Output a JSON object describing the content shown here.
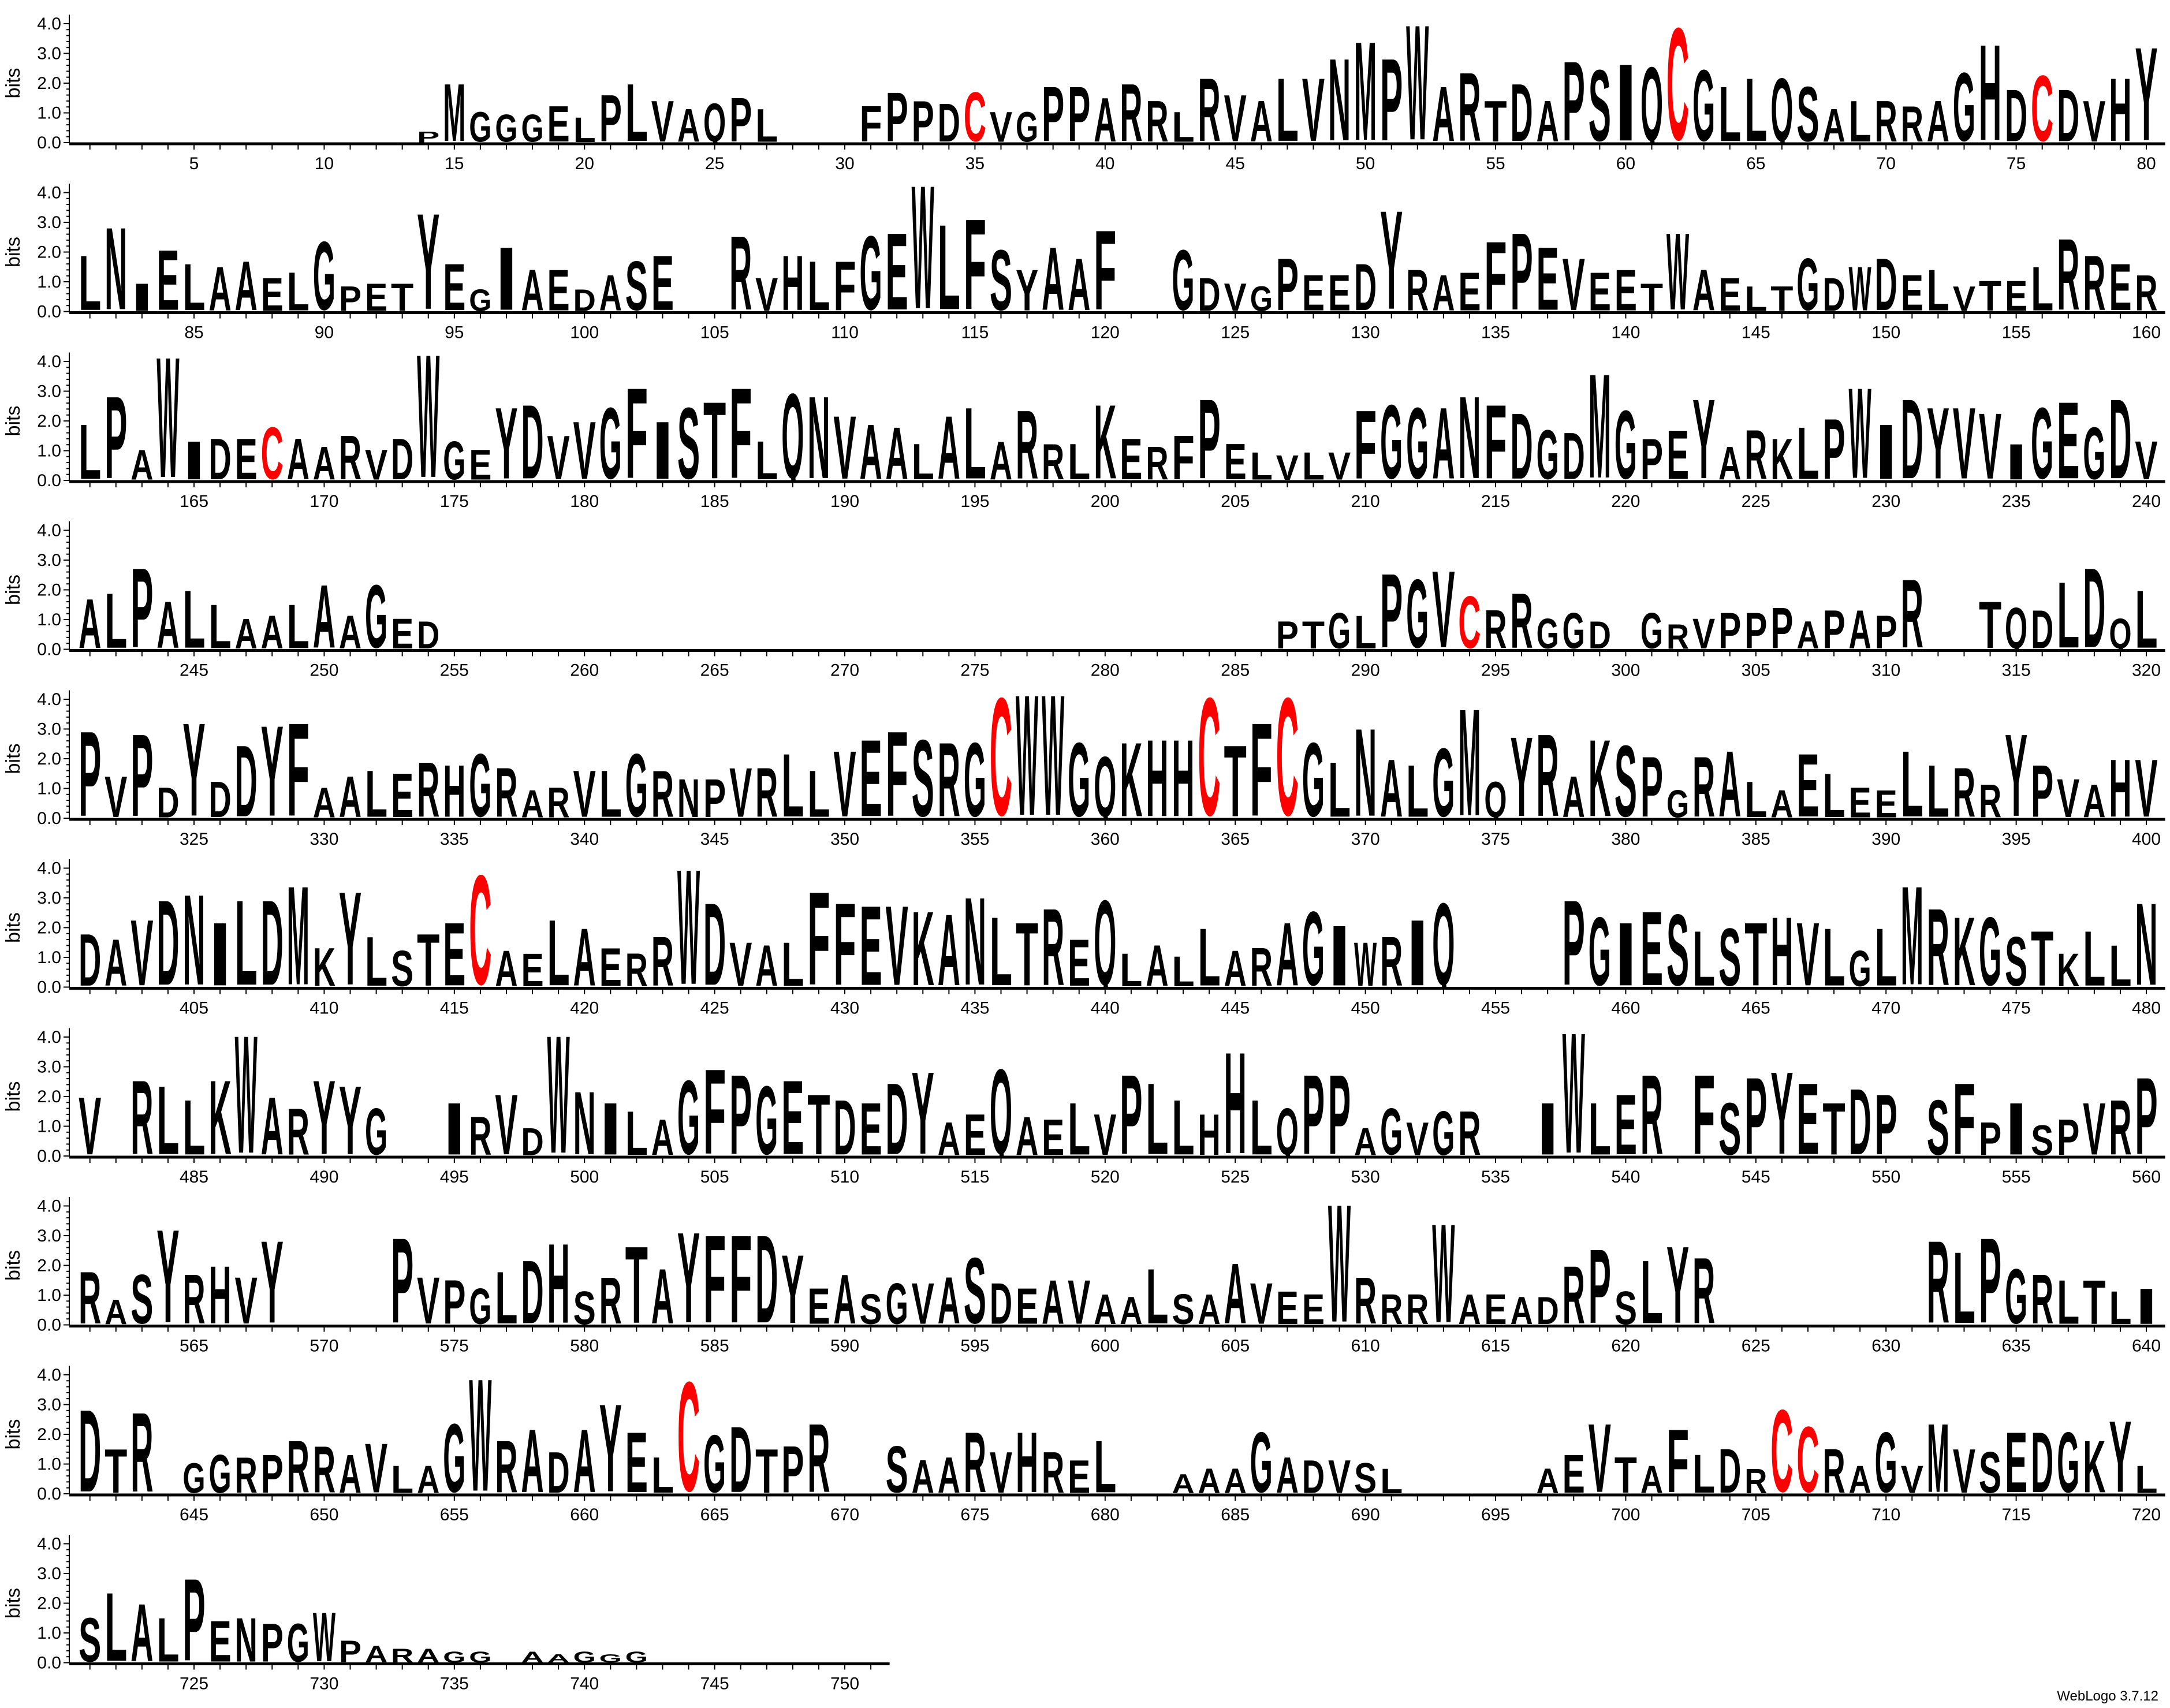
{
  "chart_data": {
    "type": "sequence-logo",
    "ylabel": "bits",
    "ylim": [
      0,
      4.3
    ],
    "ytick_labels": [
      "0.0",
      "1.0",
      "2.0",
      "3.0",
      "4.0"
    ],
    "xtick_every": 5,
    "colors": {
      "default": "#000000",
      "C": "#ff0000"
    },
    "credit": "WebLogo 3.7.12",
    "rows": [
      {
        "start": 1,
        "consensus": ".............PMGGGELPLVAQPL...FPPDCVGPPARRLRVALVNMPWARTDAPSIQCGLLQSALRRAGHDCDVHY",
        "bits": [
          0.15,
          0.15,
          0.15,
          0.15,
          0.15,
          0.15,
          0.15,
          0.15,
          0.15,
          0.15,
          0.15,
          0.15,
          0.15,
          0.4,
          2.1,
          1.1,
          1.0,
          1.0,
          1.3,
          0.9,
          1.7,
          2.1,
          1.5,
          1.2,
          1.4,
          1.6,
          1.2,
          0.3,
          0.3,
          0.4,
          1.3,
          1.8,
          1.5,
          1.4,
          1.8,
          1.1,
          1.1,
          2.0,
          2.0,
          1.6,
          2.1,
          1.5,
          1.1,
          2.3,
          1.7,
          1.5,
          2.3,
          2.3,
          3.0,
          3.6,
          3.0,
          4.2,
          2.0,
          2.5,
          1.5,
          2.1,
          1.5,
          2.9,
          2.6,
          2.8,
          2.7,
          4.1,
          2.6,
          2.0,
          2.3,
          2.3,
          2.0,
          1.2,
          1.5,
          1.5,
          1.3,
          1.5,
          2.5,
          3.5,
          1.9,
          2.4,
          1.9,
          1.5,
          2.3,
          3.4
        ]
      },
      {
        "start": 81,
        "consensus": "LNIELAAELGPETYEGIAEDASE..RVHLFGEWLFSYAAF..GDVGPEEDYRAEFPEVEETWAELTGDWDELVTELRRER",
        "bits": [
          2.0,
          3.0,
          1.0,
          2.2,
          1.7,
          1.6,
          1.8,
          1.2,
          1.4,
          2.5,
          0.9,
          1.0,
          1.0,
          3.5,
          1.7,
          0.8,
          2.3,
          1.5,
          1.5,
          0.8,
          1.3,
          1.8,
          2.0,
          0.2,
          0.3,
          2.7,
          1.2,
          2.0,
          1.8,
          1.8,
          2.7,
          2.8,
          4.5,
          3.1,
          3.3,
          2.2,
          1.5,
          2.3,
          1.9,
          2.9,
          0.2,
          0.3,
          2.2,
          1.2,
          1.0,
          0.9,
          1.9,
          1.3,
          1.3,
          1.7,
          3.6,
          1.5,
          1.3,
          1.4,
          2.5,
          2.8,
          2.3,
          1.9,
          1.4,
          1.5,
          1.0,
          2.8,
          1.5,
          1.2,
          0.9,
          0.9,
          1.9,
          1.2,
          1.6,
          1.9,
          1.3,
          1.5,
          0.9,
          1.1,
          1.1,
          1.6,
          2.6,
          2.0,
          1.7,
          1.3
        ]
      },
      {
        "start": 161,
        "consensus": "LPAWIDECAARVDWGEYDVVGFISTFLQNVAALALARRLKERFPELVLVFGGANFDGDMGPEYARKLPWIDYVVIGEGDV",
        "bits": [
          2.0,
          3.0,
          1.1,
          4.4,
          1.4,
          1.5,
          1.5,
          1.9,
          1.5,
          1.2,
          1.6,
          1.1,
          1.5,
          4.5,
          1.4,
          1.1,
          2.6,
          2.7,
          1.6,
          2.1,
          2.6,
          3.3,
          2.1,
          2.6,
          2.8,
          3.3,
          1.4,
          3.1,
          3.0,
          2.3,
          2.0,
          1.9,
          1.3,
          2.3,
          2.6,
          1.4,
          2.5,
          1.3,
          1.3,
          2.7,
          1.5,
          1.2,
          1.6,
          2.9,
          1.3,
          1.0,
          0.9,
          1.0,
          1.0,
          2.5,
          2.7,
          2.6,
          2.6,
          3.0,
          2.7,
          2.4,
          1.8,
          1.7,
          3.8,
          2.5,
          1.5,
          1.8,
          2.9,
          1.2,
          1.8,
          1.5,
          1.9,
          2.2,
          3.3,
          2.0,
          2.9,
          2.6,
          2.6,
          2.4,
          1.3,
          2.6,
          2.8,
          1.9,
          2.9,
          1.4
        ]
      },
      {
        "start": 241,
        "consensus": "ALPALLAALAAGED................................PTGLPGVCRRGGD.GRVPPPAPAPR..TQDLDQL",
        "bits": [
          1.8,
          2.0,
          2.9,
          1.7,
          2.1,
          1.6,
          1.1,
          1.2,
          1.6,
          2.3,
          1.2,
          2.3,
          1.1,
          1.0,
          0.05,
          0.05,
          0.05,
          0.05,
          0.05,
          0.05,
          0.05,
          0.05,
          0.05,
          0.05,
          0.05,
          0.05,
          0.05,
          0.05,
          0.05,
          0.05,
          0.05,
          0.05,
          0.05,
          0.05,
          0.05,
          0.05,
          0.05,
          0.05,
          0.05,
          0.05,
          0.05,
          0.05,
          0.05,
          0.05,
          0.05,
          0.05,
          1.0,
          1.0,
          1.3,
          1.2,
          2.7,
          2.5,
          2.8,
          1.9,
          1.4,
          2.0,
          1.1,
          1.3,
          1.0,
          0.3,
          1.3,
          0.9,
          1.1,
          1.3,
          1.3,
          1.5,
          1.0,
          1.4,
          1.4,
          1.2,
          2.5,
          0.1,
          0.1,
          1.7,
          1.5,
          1.4,
          2.4,
          2.9,
          1.1,
          2.1
        ]
      },
      {
        "start": 321,
        "consensus": "PVPDYDDYFAALERHGRARVLGRNPVRLLVEFSRGCWWGQKHHCTFCGLNALGMQYRAKSPGRALAELEELLRRYPVAHV",
        "bits": [
          3.1,
          1.5,
          3.0,
          1.1,
          3.4,
          1.3,
          2.6,
          3.3,
          3.4,
          1.1,
          1.5,
          1.7,
          1.6,
          2.0,
          1.9,
          2.3,
          1.8,
          1.0,
          1.1,
          1.7,
          1.7,
          2.3,
          1.7,
          1.4,
          1.4,
          1.8,
          1.8,
          2.3,
          1.7,
          2.4,
          2.8,
          3.1,
          2.8,
          2.7,
          2.7,
          4.3,
          4.4,
          4.4,
          2.7,
          2.2,
          2.7,
          2.8,
          2.8,
          4.3,
          2.6,
          3.4,
          4.3,
          2.7,
          2.0,
          3.2,
          2.1,
          1.9,
          2.5,
          3.9,
          1.3,
          2.9,
          3.0,
          1.5,
          2.8,
          2.6,
          2.2,
          1.0,
          2.2,
          2.4,
          1.3,
          1.0,
          2.3,
          1.6,
          1.1,
          1.0,
          2.4,
          1.9,
          1.8,
          1.2,
          3.0,
          1.9,
          1.4,
          1.2,
          2.1,
          2.1
        ]
      },
      {
        "start": 401,
        "consensus": "DAVDNILDMKYLSTECAELAERRWDVALFFEVKANLTREQLALLARAGIWRIQ....PGIESLSTHVLGLMRKGSTKLLN",
        "bits": [
          1.9,
          1.7,
          2.4,
          3.1,
          3.3,
          2.3,
          3.1,
          3.1,
          3.6,
          1.4,
          3.4,
          1.8,
          1.3,
          1.9,
          2.3,
          4.0,
          1.3,
          1.2,
          2.4,
          2.1,
          1.4,
          1.2,
          1.8,
          4.2,
          3.0,
          1.6,
          1.5,
          1.6,
          3.4,
          3.0,
          2.9,
          2.9,
          2.7,
          2.6,
          3.2,
          2.5,
          2.3,
          2.8,
          1.7,
          3.1,
          1.2,
          1.5,
          1.1,
          2.1,
          1.3,
          1.4,
          2.3,
          2.7,
          2.2,
          1.6,
          1.8,
          2.4,
          3.0,
          0.05,
          0.05,
          0.05,
          0.05,
          3.1,
          2.5,
          2.3,
          2.7,
          2.6,
          2.0,
          2.1,
          2.3,
          2.5,
          2.3,
          2.1,
          1.3,
          2.1,
          3.6,
          2.8,
          2.5,
          2.5,
          1.8,
          2.0,
          1.2,
          2.0,
          1.5,
          3.0
        ]
      },
      {
        "start": 481,
        "consensus": "V.RLLKWARYYG..IRVDWNILAGFPGETDEDYAEQAELVPLLHHLQPPAGVGR..IWLER.FSPYETDP.SFPISPVRP",
        "bits": [
          2.1,
          0.3,
          2.7,
          2.5,
          2.0,
          2.7,
          4.3,
          2.1,
          1.7,
          2.7,
          2.5,
          1.7,
          0.2,
          0.2,
          1.9,
          1.4,
          2.2,
          1.0,
          4.3,
          2.3,
          1.9,
          1.6,
          1.3,
          2.7,
          3.1,
          2.9,
          2.5,
          2.7,
          2.2,
          2.0,
          1.9,
          2.6,
          3.0,
          1.2,
          1.5,
          3.1,
          1.4,
          1.3,
          1.9,
          1.5,
          2.9,
          2.6,
          2.0,
          1.5,
          3.7,
          2.0,
          1.7,
          2.9,
          2.9,
          1.0,
          1.7,
          1.2,
          1.6,
          1.6,
          0.1,
          0.1,
          1.9,
          4.4,
          1.9,
          2.2,
          2.9,
          0.1,
          2.9,
          1.9,
          2.8,
          3.0,
          2.6,
          1.9,
          2.4,
          2.2,
          0.1,
          2.0,
          2.6,
          1.2,
          1.9,
          1.1,
          1.3,
          1.9,
          2.0,
          2.8
        ]
      },
      {
        "start": 561,
        "consensus": "RASYRHVY....PVPGLDHSRTAYFFDYEASGVASDEAVAALSAAVEEWRRRWAEADRPSLYR........RLPGRLTLI",
        "bits": [
          1.9,
          0.9,
          1.8,
          3.4,
          1.8,
          2.1,
          1.7,
          3.0,
          0.1,
          0.1,
          0.1,
          0.1,
          3.1,
          1.7,
          1.6,
          1.3,
          1.9,
          2.3,
          2.9,
          1.2,
          1.7,
          2.8,
          2.0,
          3.3,
          3.2,
          3.2,
          3.2,
          2.5,
          1.3,
          1.8,
          1.1,
          1.5,
          1.5,
          1.7,
          2.4,
          1.5,
          1.3,
          1.6,
          1.6,
          1.1,
          1.0,
          2.0,
          1.1,
          1.1,
          2.2,
          1.5,
          1.2,
          1.1,
          4.3,
          1.7,
          1.1,
          1.1,
          3.6,
          1.1,
          1.1,
          1.0,
          1.0,
          2.1,
          2.7,
          1.2,
          2.3,
          2.8,
          2.4,
          0.1,
          0.1,
          0.1,
          0.1,
          0.1,
          0.1,
          0.1,
          0.1,
          3.0,
          2.6,
          3.1,
          2.0,
          1.8,
          1.6,
          1.6,
          1.2,
          1.3
        ]
      },
      {
        "start": 641,
        "consensus": "DTR.GGRPRRAVLAGWRADAYELCGDTPR..SAARVHREL..AAAGADVSL.....AEVTAFLDRCCRAGVMVSEDGKYL",
        "bits": [
          3.0,
          1.6,
          2.9,
          0.8,
          1.1,
          1.4,
          1.3,
          1.4,
          1.9,
          1.7,
          1.4,
          1.8,
          1.0,
          1.0,
          2.5,
          4.1,
          1.9,
          2.3,
          1.5,
          2.3,
          3.2,
          2.2,
          1.3,
          4.0,
          2.1,
          2.4,
          1.6,
          1.7,
          2.5,
          0.1,
          0.1,
          1.7,
          1.2,
          1.3,
          2.2,
          1.5,
          2.2,
          1.5,
          1.2,
          1.9,
          0.3,
          0.1,
          0.7,
          0.9,
          0.9,
          2.2,
          1.3,
          1.2,
          1.2,
          1.1,
          0.9,
          0.1,
          0.3,
          0.3,
          0.3,
          0.3,
          0.9,
          1.4,
          2.5,
          1.3,
          1.0,
          2.3,
          1.4,
          1.6,
          0.9,
          3.0,
          2.4,
          1.6,
          1.0,
          2.2,
          1.0,
          2.5,
          1.6,
          1.5,
          2.2,
          2.2,
          2.2,
          1.9,
          2.6,
          1.0
        ]
      },
      {
        "start": 721,
        "consensus": "SLALPENPGWPARAGG.AAGGG.........",
        "bits": [
          1.6,
          2.5,
          2.1,
          1.6,
          3.0,
          1.5,
          1.6,
          1.4,
          1.4,
          1.8,
          0.8,
          0.6,
          0.5,
          0.5,
          0.4,
          0.4,
          0.3,
          0.4,
          0.3,
          0.4,
          0.3,
          0.4,
          0.1,
          0.1,
          0.1,
          0.1,
          0.1,
          0.1,
          0.1,
          0.1,
          0.1
        ]
      }
    ]
  }
}
